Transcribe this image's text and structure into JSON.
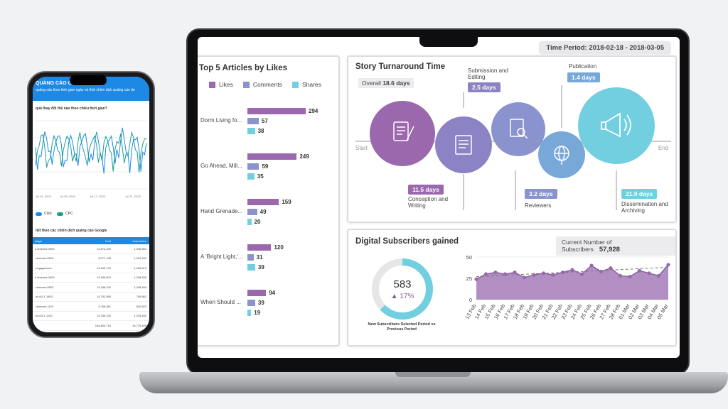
{
  "dashboard": {
    "time_period": "Time Period: 2018-02-18 - 2018-03-05",
    "articles": {
      "title": "Top 5 Articles by Likes",
      "legend": [
        {
          "label": "Likes",
          "color": "#9b67ad"
        },
        {
          "label": "Comments",
          "color": "#8b93cf"
        },
        {
          "label": "Shares",
          "color": "#72cfe0"
        }
      ],
      "items": [
        {
          "title": "Dorm Living fo...",
          "likes": 294,
          "comments": 57,
          "shares": 38
        },
        {
          "title": "Go Ahead, Mill...",
          "likes": 249,
          "comments": 59,
          "shares": 35
        },
        {
          "title": "Hand Grenade...",
          "likes": 159,
          "comments": 49,
          "shares": 20
        },
        {
          "title": "A 'Bright Light,'...",
          "likes": 120,
          "comments": 31,
          "shares": 39
        },
        {
          "title": "When Should ...",
          "likes": 94,
          "comments": 39,
          "shares": 19
        }
      ]
    },
    "turnaround": {
      "title": "Story Turnaround Time",
      "overall_label": "Overall",
      "overall_value": "18.6 days",
      "start": "Start",
      "end": "End",
      "stages": [
        {
          "name": "Conception and Writing",
          "days": "11.5 days",
          "icon": "manuscript-icon",
          "color": "#9b67ad"
        },
        {
          "name": "Submission and Editing",
          "days": "2.5 days",
          "icon": "document-icon",
          "color": "#8b83c4"
        },
        {
          "name": "Reviewers",
          "days": "3.2 days",
          "icon": "magnifier-doc-icon",
          "color": "#8b93cf"
        },
        {
          "name": "Publication",
          "days": "1.4 days",
          "icon": "globe-icon",
          "color": "#78a8d8"
        },
        {
          "name": "Dissemination and Archiving",
          "days": "21.0 days",
          "icon": "megaphone-icon",
          "color": "#72cfe0"
        }
      ]
    },
    "subscribers": {
      "title": "Digital Subscribers gained",
      "current_label": "Current Number of Subscribers",
      "current_value": "57,928",
      "gauge_value": "583",
      "gauge_change": "▲ 17%",
      "gauge_fraction": 0.63,
      "gauge_caption": "New Subscribers Selected Period vs Previous Period"
    }
  },
  "chart_data": {
    "type": "area",
    "title": "Digital Subscribers gained",
    "x": [
      "13 Feb",
      "14 Feb",
      "15 Feb",
      "16 Feb",
      "17 Feb",
      "18 Feb",
      "19 Feb",
      "20 Feb",
      "21 Feb",
      "22 Feb",
      "23 Feb",
      "24 Feb",
      "25 Feb",
      "26 Feb",
      "27 Feb",
      "28 Feb",
      "01 Mar",
      "02 Mar",
      "03 Mar",
      "04 Mar",
      "05 Mar"
    ],
    "x_tick_labels": [
      "13 Feb",
      "14 Feb",
      "15 Feb",
      "16 Feb",
      "17 Feb",
      "18 Feb",
      "19 Feb",
      "20 Feb",
      "21 Feb",
      "22 Feb",
      "23 Feb",
      "24 Feb",
      "25 Feb",
      "26 Feb",
      "27 Feb",
      "28 Feb",
      "01 Mar",
      "02 Mar",
      "03 Mar",
      "04 Mar",
      "05 Mar"
    ],
    "series": [
      {
        "name": "Subscribers",
        "values": [
          24,
          30,
          32,
          30,
          32,
          26,
          29,
          31,
          29,
          32,
          35,
          30,
          40,
          33,
          37,
          28,
          27,
          34,
          31,
          28,
          41
        ]
      }
    ],
    "trend": [
      27,
      38
    ],
    "ylim": [
      0,
      50
    ],
    "yticks": [
      0,
      25,
      50
    ],
    "xlabel": "",
    "ylabel": "",
    "color": "#a37bb8"
  },
  "phone": {
    "header_title": "QUẢNG CÁO G",
    "header_subtitle": "quảng cáo theo thời gian ngày và thời chiến dịch quảng cáo de",
    "question": "quả thay đổi thế nào theo chiều thời gian?",
    "x_labels": [
      "Jul 01, 2020",
      "Jul 09, 2020",
      "Jul 17, 2020",
      "Jul 31, 2020"
    ],
    "toggles": [
      "Click",
      "CPC"
    ],
    "table_title": "tiết theo các chiến dịch quảng cáo Google",
    "table_headers": [
      "paign",
      "Cost",
      "Impression"
    ],
    "rows": [
      [
        "d-finished-0503",
        "12,874,432",
        "1,345,884"
      ],
      [
        "-dormant-0503",
        "9,077,108",
        "1,092,442"
      ],
      [
        "-engagement",
        "13,189,724",
        "1,408,513"
      ],
      [
        "d-finished-0503",
        "13,186,602",
        "1,248,459"
      ],
      [
        "-dormant-0503",
        "13,188,432",
        "1,248,459"
      ],
      [
        "-et-vi3-1-1603",
        "14,792,580",
        "790,882"
      ],
      [
        "-dormant-1102",
        "3,768,081",
        "842,823"
      ],
      [
        "-et-vi3-1-1102",
        "13,789,132",
        "1,249,450"
      ],
      [
        "",
        "164,850,718",
        "15,776,409"
      ]
    ],
    "line_colors": [
      "#1e88e5",
      "#1a9e8f"
    ]
  }
}
